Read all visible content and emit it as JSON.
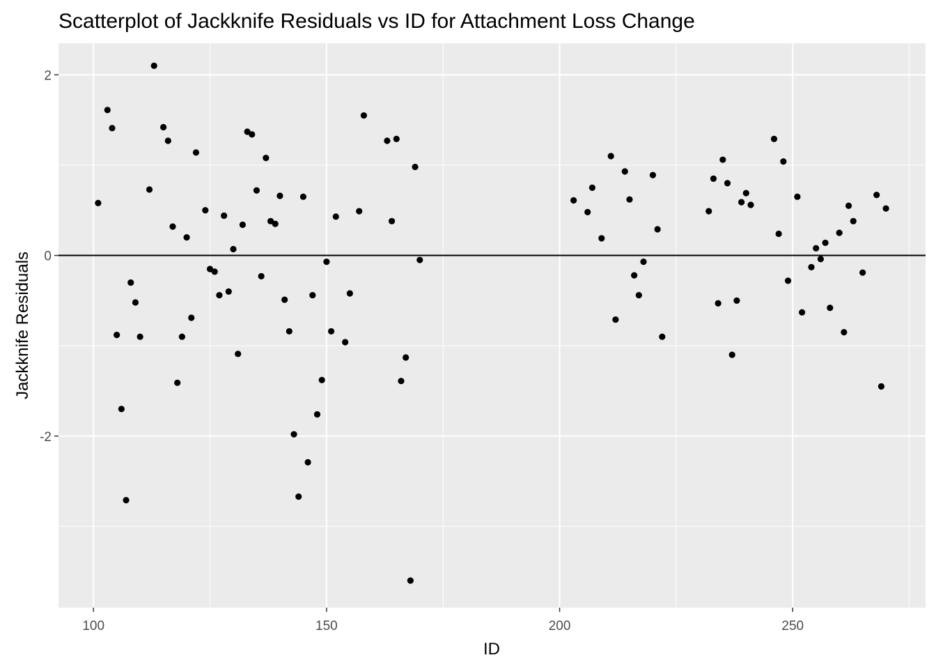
{
  "chart_data": {
    "type": "scatter",
    "title": "Scatterplot of Jackknife Residuals vs ID for Attachment Loss Change",
    "xlabel": "ID",
    "ylabel": "Jackknife Residuals",
    "xlim": [
      92.5,
      278.5
    ],
    "ylim": [
      -3.9,
      2.35
    ],
    "x_ticks": [
      100,
      150,
      200,
      250
    ],
    "x_tick_labels": [
      "100",
      "150",
      "200",
      "250"
    ],
    "y_ticks": [
      -2,
      0,
      2
    ],
    "y_tick_labels": [
      "-2",
      "0",
      "2"
    ],
    "grid": true,
    "reference_line_y": 0,
    "colors": {
      "panel": "#ebebeb",
      "grid": "#ffffff",
      "point": "#000000",
      "line": "#000000"
    },
    "points": [
      {
        "x": 101,
        "y": 0.58
      },
      {
        "x": 103,
        "y": 1.61
      },
      {
        "x": 104,
        "y": 1.41
      },
      {
        "x": 105,
        "y": -0.88
      },
      {
        "x": 106,
        "y": -1.7
      },
      {
        "x": 107,
        "y": -2.71
      },
      {
        "x": 108,
        "y": -0.3
      },
      {
        "x": 109,
        "y": -0.52
      },
      {
        "x": 110,
        "y": -0.9
      },
      {
        "x": 112,
        "y": 0.73
      },
      {
        "x": 113,
        "y": 2.1
      },
      {
        "x": 115,
        "y": 1.42
      },
      {
        "x": 116,
        "y": 1.27
      },
      {
        "x": 117,
        "y": 0.32
      },
      {
        "x": 118,
        "y": -1.41
      },
      {
        "x": 119,
        "y": -0.9
      },
      {
        "x": 120,
        "y": 0.2
      },
      {
        "x": 121,
        "y": -0.69
      },
      {
        "x": 122,
        "y": 1.14
      },
      {
        "x": 124,
        "y": 0.5
      },
      {
        "x": 125,
        "y": -0.15
      },
      {
        "x": 126,
        "y": -0.18
      },
      {
        "x": 127,
        "y": -0.44
      },
      {
        "x": 128,
        "y": 0.44
      },
      {
        "x": 129,
        "y": -0.4
      },
      {
        "x": 130,
        "y": 0.07
      },
      {
        "x": 131,
        "y": -1.09
      },
      {
        "x": 132,
        "y": 0.34
      },
      {
        "x": 133,
        "y": 1.37
      },
      {
        "x": 134,
        "y": 1.34
      },
      {
        "x": 135,
        "y": 0.72
      },
      {
        "x": 136,
        "y": -0.23
      },
      {
        "x": 137,
        "y": 1.08
      },
      {
        "x": 138,
        "y": 0.38
      },
      {
        "x": 139,
        "y": 0.35
      },
      {
        "x": 140,
        "y": 0.66
      },
      {
        "x": 141,
        "y": -0.49
      },
      {
        "x": 142,
        "y": -0.84
      },
      {
        "x": 143,
        "y": -1.98
      },
      {
        "x": 144,
        "y": -2.67
      },
      {
        "x": 145,
        "y": 0.65
      },
      {
        "x": 146,
        "y": -2.29
      },
      {
        "x": 147,
        "y": -0.44
      },
      {
        "x": 148,
        "y": -1.76
      },
      {
        "x": 149,
        "y": -1.38
      },
      {
        "x": 150,
        "y": -0.07
      },
      {
        "x": 151,
        "y": -0.84
      },
      {
        "x": 152,
        "y": 0.43
      },
      {
        "x": 154,
        "y": -0.96
      },
      {
        "x": 155,
        "y": -0.42
      },
      {
        "x": 157,
        "y": 0.49
      },
      {
        "x": 158,
        "y": 1.55
      },
      {
        "x": 163,
        "y": 1.27
      },
      {
        "x": 164,
        "y": 0.38
      },
      {
        "x": 165,
        "y": 1.29
      },
      {
        "x": 166,
        "y": -1.39
      },
      {
        "x": 167,
        "y": -1.13
      },
      {
        "x": 168,
        "y": -3.6
      },
      {
        "x": 169,
        "y": 0.98
      },
      {
        "x": 170,
        "y": -0.05
      },
      {
        "x": 203,
        "y": 0.61
      },
      {
        "x": 206,
        "y": 0.48
      },
      {
        "x": 207,
        "y": 0.75
      },
      {
        "x": 209,
        "y": 0.19
      },
      {
        "x": 211,
        "y": 1.1
      },
      {
        "x": 212,
        "y": -0.71
      },
      {
        "x": 214,
        "y": 0.93
      },
      {
        "x": 215,
        "y": 0.62
      },
      {
        "x": 216,
        "y": -0.22
      },
      {
        "x": 217,
        "y": -0.44
      },
      {
        "x": 218,
        "y": -0.07
      },
      {
        "x": 220,
        "y": 0.89
      },
      {
        "x": 221,
        "y": 0.29
      },
      {
        "x": 222,
        "y": -0.9
      },
      {
        "x": 232,
        "y": 0.49
      },
      {
        "x": 233,
        "y": 0.85
      },
      {
        "x": 234,
        "y": -0.53
      },
      {
        "x": 235,
        "y": 1.06
      },
      {
        "x": 236,
        "y": 0.8
      },
      {
        "x": 237,
        "y": -1.1
      },
      {
        "x": 238,
        "y": -0.5
      },
      {
        "x": 239,
        "y": 0.59
      },
      {
        "x": 240,
        "y": 0.69
      },
      {
        "x": 241,
        "y": 0.56
      },
      {
        "x": 246,
        "y": 1.29
      },
      {
        "x": 247,
        "y": 0.24
      },
      {
        "x": 248,
        "y": 1.04
      },
      {
        "x": 249,
        "y": -0.28
      },
      {
        "x": 251,
        "y": 0.65
      },
      {
        "x": 252,
        "y": -0.63
      },
      {
        "x": 254,
        "y": -0.13
      },
      {
        "x": 255,
        "y": 0.08
      },
      {
        "x": 256,
        "y": -0.04
      },
      {
        "x": 257,
        "y": 0.14
      },
      {
        "x": 258,
        "y": -0.58
      },
      {
        "x": 260,
        "y": 0.25
      },
      {
        "x": 261,
        "y": -0.85
      },
      {
        "x": 262,
        "y": 0.55
      },
      {
        "x": 263,
        "y": 0.38
      },
      {
        "x": 265,
        "y": -0.19
      },
      {
        "x": 268,
        "y": 0.67
      },
      {
        "x": 269,
        "y": -1.45
      },
      {
        "x": 270,
        "y": 0.52
      }
    ]
  }
}
